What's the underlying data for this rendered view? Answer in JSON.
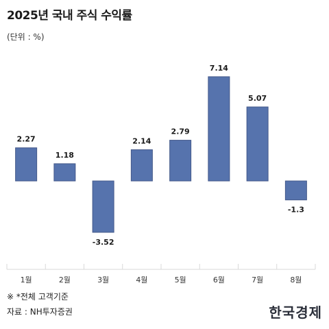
{
  "header": {
    "title": "2025년 국내 주식 수익률",
    "unit_note": "(단위 : %)"
  },
  "footer": {
    "footnote": "※ *전체 고객기준",
    "source": "자료 : NH투자증권",
    "logo_text": "한국경제"
  },
  "colors": {
    "bar": "#5673ad",
    "bar_edge": "#44598a",
    "axis_line": "#d9d9d9"
  },
  "chart_data": {
    "type": "bar",
    "title": "2025년 국내 주식 수익률",
    "ylabel": "(단위 : %)",
    "categories": [
      "1월",
      "2월",
      "3월",
      "4월",
      "5월",
      "6월",
      "7월",
      "8월"
    ],
    "values": [
      2.27,
      1.18,
      -3.52,
      2.14,
      2.79,
      7.14,
      5.07,
      -1.3
    ],
    "value_labels": [
      "2.27",
      "1.18",
      "-3.52",
      "2.14",
      "2.79",
      "7.14",
      "5.07",
      "-1.3"
    ],
    "ylim": [
      -6,
      8
    ],
    "grid": false,
    "legend": "none"
  }
}
